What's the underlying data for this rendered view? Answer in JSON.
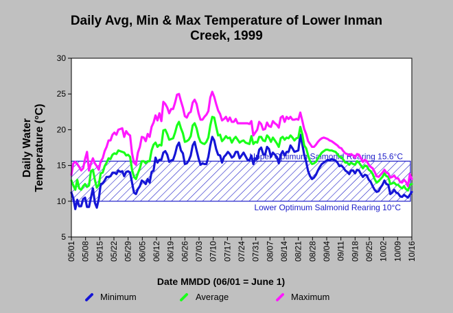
{
  "colors": {
    "background": "#c0c0c0",
    "plot_area": "#ffffff",
    "minimum": "#1515d6",
    "average": "#1aff1a",
    "maximum": "#ff19ff",
    "band": "#1c1cc8"
  },
  "chart_data": {
    "type": "line",
    "title": "Daily Avg, Min & Max Temperature of Lower Inman Creek, 1999",
    "title_lines": [
      "Daily Avg, Min & Max Temperature of Lower Inman",
      "Creek, 1999"
    ],
    "xlabel": "Date MMDD (06/01 = June 1)",
    "ylabel": "Daily Water Temperature (°C)",
    "ylabel_lines": [
      "Daily Water",
      "Temperature (°C)"
    ],
    "ylim": [
      5,
      30
    ],
    "yticks": [
      5,
      10,
      15,
      20,
      25,
      30
    ],
    "x_tick_labels": [
      "05/01",
      "05/08",
      "05/15",
      "05/22",
      "05/29",
      "06/05",
      "06/12",
      "06/19",
      "06/26",
      "07/03",
      "07/10",
      "07/17",
      "07/24",
      "07/31",
      "08/07",
      "08/14",
      "08/21",
      "08/28",
      "09/04",
      "09/11",
      "09/18",
      "09/25",
      "10/02",
      "10/09",
      "10/16"
    ],
    "x_start": "05/01",
    "x_end": "10/16",
    "grid": false,
    "legend_position": "bottom",
    "annotations": [
      {
        "text": "Upper Optimum Salmonid Rearing 15.6°C",
        "y": 15.6
      },
      {
        "text": "Lower Optimum Salmonid Rearing 10°C",
        "y": 10
      }
    ],
    "band": {
      "low": 10,
      "high": 15.6
    },
    "series": [
      {
        "name": "Minimum",
        "color": "#1515d6",
        "values": [
          11.2,
          10.4,
          8.9,
          10.2,
          9.3,
          9.3,
          10.3,
          10.5,
          9.2,
          9.2,
          10.5,
          11.8,
          9.8,
          9.1,
          10.3,
          12.4,
          12.5,
          12.9,
          13.4,
          13.4,
          13.5,
          14.0,
          14.0,
          13.8,
          14.3,
          14.1,
          14.2,
          13.5,
          14.1,
          14.2,
          14.0,
          12.6,
          11.2,
          11.0,
          11.7,
          12.1,
          12.9,
          12.7,
          12.4,
          13.1,
          12.6,
          14.1,
          14.3,
          16.1,
          15.4,
          15.8,
          15.8,
          16.8,
          17.0,
          16.5,
          15.5,
          15.7,
          15.8,
          16.6,
          17.7,
          18.2,
          17.1,
          16.7,
          15.2,
          15.3,
          15.7,
          16.4,
          17.8,
          18.3,
          17.1,
          16.0,
          15.1,
          15.3,
          15.2,
          15.2,
          16.2,
          17.8,
          19.0,
          18.5,
          17.3,
          16.5,
          16.4,
          15.4,
          16.2,
          16.5,
          16.9,
          16.6,
          16.1,
          16.3,
          16.9,
          16.9,
          16.0,
          16.4,
          16.8,
          16.3,
          15.8,
          15.7,
          16.4,
          15.2,
          16.0,
          15.9,
          17.2,
          17.5,
          16.6,
          16.5,
          17.6,
          17.3,
          16.2,
          16.8,
          16.5,
          16.2,
          15.3,
          16.5,
          17.0,
          16.4,
          16.9,
          16.9,
          17.8,
          17.4,
          16.9,
          17.0,
          17.1,
          19.3,
          18.0,
          16.5,
          15.5,
          14.2,
          13.5,
          13.1,
          13.3,
          13.7,
          14.3,
          14.8,
          15.2,
          15.4,
          15.6,
          15.8,
          15.7,
          15.9,
          15.8,
          15.7,
          15.4,
          14.9,
          15.0,
          14.7,
          14.3,
          14.1,
          13.8,
          14.3,
          14.3,
          13.9,
          14.4,
          14.3,
          13.8,
          13.4,
          13.7,
          13.6,
          13.0,
          12.7,
          12.1,
          11.6,
          11.3,
          11.4,
          11.9,
          12.3,
          12.9,
          12.4,
          12.3,
          11.0,
          11.2,
          11.6,
          11.2,
          11.1,
          10.7,
          10.6,
          10.9,
          10.7,
          10.5,
          10.9,
          11.3
        ]
      },
      {
        "name": "Average",
        "color": "#1aff1a",
        "values": [
          12.9,
          12.2,
          11.6,
          13.0,
          11.8,
          11.6,
          12.1,
          12.4,
          12.0,
          12.2,
          14.2,
          14.4,
          13.0,
          11.9,
          12.3,
          13.9,
          14.0,
          14.9,
          15.4,
          16.0,
          15.9,
          16.5,
          16.7,
          16.6,
          17.1,
          17.0,
          16.9,
          16.8,
          16.4,
          16.5,
          16.2,
          14.4,
          13.4,
          13.1,
          13.9,
          14.6,
          15.6,
          15.6,
          15.3,
          15.6,
          15.6,
          17.1,
          17.9,
          18.2,
          17.6,
          17.9,
          17.8,
          19.9,
          20.0,
          19.4,
          18.6,
          18.7,
          18.8,
          19.6,
          20.6,
          21.1,
          20.2,
          19.5,
          18.3,
          18.4,
          18.6,
          19.1,
          20.6,
          20.9,
          20.2,
          19.0,
          18.3,
          18.1,
          18.0,
          18.3,
          18.9,
          20.6,
          21.8,
          21.7,
          20.4,
          19.2,
          19.3,
          18.4,
          18.7,
          19.1,
          18.8,
          18.9,
          18.2,
          18.7,
          19.0,
          18.6,
          18.2,
          18.4,
          18.5,
          18.2,
          18.1,
          18.0,
          19.1,
          18.0,
          18.3,
          18.2,
          19.0,
          19.0,
          18.5,
          18.4,
          19.2,
          18.9,
          18.3,
          18.9,
          18.5,
          18.1,
          17.6,
          18.8,
          19.0,
          18.6,
          18.9,
          18.8,
          19.2,
          18.9,
          18.5,
          18.8,
          18.9,
          20.4,
          19.4,
          17.8,
          17.4,
          16.4,
          15.6,
          15.2,
          15.3,
          15.5,
          16.0,
          16.4,
          16.8,
          17.0,
          17.2,
          17.2,
          17.1,
          17.1,
          17.0,
          16.9,
          16.6,
          16.2,
          16.2,
          15.8,
          15.4,
          15.4,
          15.1,
          15.4,
          15.2,
          15.1,
          15.6,
          15.4,
          15.0,
          14.6,
          15.0,
          14.9,
          14.4,
          14.2,
          13.8,
          13.1,
          12.6,
          12.8,
          13.1,
          13.4,
          13.9,
          13.5,
          13.4,
          12.4,
          12.5,
          12.6,
          12.3,
          12.3,
          12.0,
          11.8,
          12.1,
          11.7,
          11.5,
          12.3,
          12.4
        ]
      },
      {
        "name": "Maximum",
        "color": "#ff19ff",
        "values": [
          13.7,
          15.3,
          15.5,
          15.2,
          14.8,
          14.3,
          14.6,
          15.9,
          16.9,
          14.3,
          15.3,
          16.0,
          15.3,
          14.9,
          14.4,
          15.6,
          16.0,
          17.0,
          17.6,
          18.5,
          18.5,
          19.3,
          19.6,
          19.3,
          20.0,
          20.1,
          20.2,
          19.0,
          19.8,
          19.4,
          19.2,
          16.7,
          15.4,
          15.1,
          16.8,
          17.6,
          19.0,
          18.9,
          18.4,
          19.4,
          19.0,
          20.4,
          21.0,
          22.0,
          21.3,
          22.3,
          21.2,
          23.9,
          23.6,
          23.1,
          22.3,
          22.9,
          22.9,
          23.8,
          24.9,
          25.0,
          24.0,
          23.1,
          21.9,
          21.7,
          22.3,
          22.5,
          23.8,
          24.2,
          23.6,
          22.3,
          21.4,
          21.4,
          21.8,
          22.1,
          22.6,
          24.5,
          25.3,
          24.6,
          23.6,
          22.7,
          22.2,
          21.3,
          21.5,
          21.8,
          21.2,
          21.7,
          21.1,
          21.1,
          21.5,
          20.9,
          20.9,
          20.9,
          20.9,
          20.9,
          20.9,
          20.8,
          21.2,
          19.2,
          19.6,
          20.0,
          21.1,
          20.8,
          20.0,
          20.1,
          21.0,
          20.5,
          20.4,
          21.2,
          20.9,
          20.7,
          20.3,
          21.7,
          21.9,
          21.1,
          21.8,
          21.5,
          21.8,
          21.4,
          21.4,
          21.5,
          21.4,
          22.4,
          21.3,
          20.1,
          19.4,
          18.4,
          18.0,
          17.6,
          17.6,
          17.9,
          18.3,
          18.6,
          18.8,
          18.9,
          18.8,
          18.7,
          18.5,
          18.4,
          18.2,
          18.0,
          17.8,
          17.5,
          17.4,
          17.0,
          16.7,
          16.6,
          16.4,
          16.6,
          16.4,
          16.1,
          16.6,
          16.5,
          16.0,
          15.5,
          15.8,
          15.6,
          15.1,
          14.8,
          14.6,
          14.1,
          13.5,
          13.4,
          13.7,
          14.0,
          14.4,
          14.0,
          13.9,
          13.3,
          13.4,
          13.6,
          13.2,
          13.2,
          12.7,
          12.6,
          13.0,
          12.7,
          12.1,
          13.8,
          13.1
        ]
      }
    ]
  }
}
